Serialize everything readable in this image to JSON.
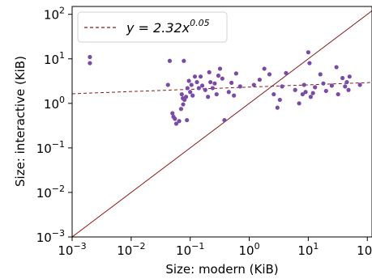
{
  "chart_data": {
    "type": "scatter",
    "xscale": "log",
    "yscale": "log",
    "xlim": [
      0.001,
      120
    ],
    "ylim": [
      0.001,
      150
    ],
    "xlabel": "Size: modern (KiB)",
    "ylabel": "Size: interactive (KiB)",
    "x_ticks": [
      {
        "value": 0.001,
        "base": "10",
        "exp": "−3"
      },
      {
        "value": 0.01,
        "base": "10",
        "exp": "−2"
      },
      {
        "value": 0.1,
        "base": "10",
        "exp": "−1"
      },
      {
        "value": 1,
        "base": "10",
        "exp": "0"
      },
      {
        "value": 10,
        "base": "10",
        "exp": "1"
      },
      {
        "value": 100,
        "base": "10",
        "exp": "2"
      }
    ],
    "y_ticks": [
      {
        "value": 0.001,
        "base": "10",
        "exp": "−3"
      },
      {
        "value": 0.01,
        "base": "10",
        "exp": "−2"
      },
      {
        "value": 0.1,
        "base": "10",
        "exp": "−1"
      },
      {
        "value": 1,
        "base": "10",
        "exp": "0"
      },
      {
        "value": 10,
        "base": "10",
        "exp": "1"
      },
      {
        "value": 100,
        "base": "10",
        "exp": "2"
      }
    ],
    "grid": false,
    "legend_position": "top-left",
    "colors": {
      "points": "#7b4aa6",
      "identity_line": "#8b1a1a",
      "fit_line": "#8b1a1a"
    },
    "fit": {
      "coefficient": 2.32,
      "exponent": 0.05,
      "label": {
        "prefix": "y = 2.32x",
        "sup": "0.05"
      }
    },
    "identity_line": true,
    "points": [
      [
        0.002,
        11
      ],
      [
        0.002,
        8
      ],
      [
        0.045,
        9
      ],
      [
        0.042,
        2.6
      ],
      [
        0.05,
        0.6
      ],
      [
        0.052,
        0.5
      ],
      [
        0.055,
        0.45
      ],
      [
        0.058,
        0.35
      ],
      [
        0.065,
        0.4
      ],
      [
        0.07,
        0.75
      ],
      [
        0.072,
        1.6
      ],
      [
        0.075,
        1.3
      ],
      [
        0.076,
        0.95
      ],
      [
        0.078,
        9
      ],
      [
        0.08,
        1.2
      ],
      [
        0.085,
        1.4
      ],
      [
        0.088,
        0.42
      ],
      [
        0.09,
        2.2
      ],
      [
        0.095,
        3.2
      ],
      [
        0.1,
        1.8
      ],
      [
        0.105,
        2.6
      ],
      [
        0.11,
        1.5
      ],
      [
        0.12,
        4
      ],
      [
        0.13,
        3
      ],
      [
        0.14,
        2.2
      ],
      [
        0.15,
        4
      ],
      [
        0.16,
        2.5
      ],
      [
        0.18,
        2.0
      ],
      [
        0.2,
        1.4
      ],
      [
        0.21,
        5
      ],
      [
        0.22,
        3.0
      ],
      [
        0.24,
        2.2
      ],
      [
        0.26,
        2.8
      ],
      [
        0.28,
        1.6
      ],
      [
        0.3,
        4.2
      ],
      [
        0.32,
        6
      ],
      [
        0.35,
        3.6
      ],
      [
        0.38,
        0.42
      ],
      [
        0.45,
        1.8
      ],
      [
        0.5,
        2.9
      ],
      [
        0.55,
        1.5
      ],
      [
        0.6,
        4.7
      ],
      [
        0.7,
        2.4
      ],
      [
        1.2,
        2.6
      ],
      [
        1.5,
        3.4
      ],
      [
        1.8,
        6
      ],
      [
        2.2,
        4.5
      ],
      [
        2.6,
        1.6
      ],
      [
        3,
        0.8
      ],
      [
        3.3,
        1.2
      ],
      [
        3.6,
        2.4
      ],
      [
        4.2,
        4.8
      ],
      [
        6,
        2.0
      ],
      [
        7,
        1.0
      ],
      [
        8,
        1.6
      ],
      [
        8.5,
        2.6
      ],
      [
        9,
        1.8
      ],
      [
        10,
        14
      ],
      [
        10.5,
        8
      ],
      [
        11,
        1.4
      ],
      [
        12,
        1.7
      ],
      [
        13,
        2.3
      ],
      [
        16,
        4.5
      ],
      [
        18,
        2.8
      ],
      [
        20,
        1.9
      ],
      [
        25,
        2.5
      ],
      [
        30,
        6.5
      ],
      [
        32,
        1.6
      ],
      [
        38,
        3.7
      ],
      [
        42,
        2.4
      ],
      [
        45,
        3.0
      ],
      [
        48,
        2.0
      ],
      [
        50,
        4.0
      ],
      [
        75,
        2.6
      ]
    ]
  }
}
